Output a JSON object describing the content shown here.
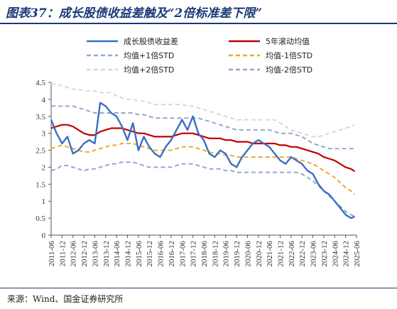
{
  "title": "图表37：成长股债收益差触及“2倍标准差下限”",
  "source": "来源：Wind、国金证券研究所",
  "chart_data": {
    "type": "line",
    "title": "",
    "xlabel": "",
    "ylabel": "",
    "ylim": [
      0,
      4.5
    ],
    "y_ticks": [
      "0",
      "0.5",
      "1",
      "1.5",
      "2",
      "2.5",
      "3",
      "3.5",
      "4",
      "4.5"
    ],
    "x_ticks": [
      "2011-06",
      "2011-12",
      "2012-06",
      "2012-12",
      "2013-06",
      "2013-12",
      "2014-06",
      "2014-12",
      "2015-06",
      "2015-12",
      "2016-06",
      "2016-12",
      "2017-06",
      "2017-12",
      "2018-06",
      "2018-12",
      "2019-06",
      "2019-12",
      "2020-06",
      "2020-12",
      "2021-06",
      "2021-12",
      "2022-06",
      "2022-12",
      "2023-06",
      "2023-12",
      "2024-06",
      "2024-12",
      "2025-06"
    ],
    "grid": false,
    "legend_position": "top",
    "x": [
      2011.5,
      2011.75,
      2012.0,
      2012.25,
      2012.5,
      2012.75,
      2013.0,
      2013.25,
      2013.5,
      2013.75,
      2014.0,
      2014.25,
      2014.5,
      2014.75,
      2015.0,
      2015.25,
      2015.5,
      2015.75,
      2016.0,
      2016.25,
      2016.5,
      2016.75,
      2017.0,
      2017.25,
      2017.5,
      2017.75,
      2018.0,
      2018.25,
      2018.5,
      2018.75,
      2019.0,
      2019.25,
      2019.5,
      2019.75,
      2020.0,
      2020.25,
      2020.5,
      2020.75,
      2021.0,
      2021.25,
      2021.5,
      2021.75,
      2022.0,
      2022.25,
      2022.5,
      2022.75,
      2023.0,
      2023.25,
      2023.5,
      2023.75,
      2024.0,
      2024.25,
      2024.5,
      2024.75,
      2025.0,
      2025.25,
      2025.42
    ],
    "series": [
      {
        "name": "成长股债收益差",
        "color": "#3a6fc4",
        "dash": "",
        "values": [
          3.4,
          3.0,
          2.7,
          2.9,
          2.4,
          2.5,
          2.7,
          2.8,
          2.7,
          3.9,
          3.8,
          3.6,
          3.5,
          3.2,
          2.8,
          3.3,
          2.5,
          2.9,
          2.6,
          2.4,
          2.3,
          2.6,
          2.8,
          3.1,
          3.4,
          3.1,
          3.5,
          3.0,
          2.8,
          2.4,
          2.3,
          2.5,
          2.4,
          2.1,
          2.0,
          2.3,
          2.5,
          2.7,
          2.8,
          2.7,
          2.6,
          2.4,
          2.2,
          2.1,
          2.3,
          2.2,
          2.1,
          1.9,
          1.8,
          1.5,
          1.3,
          1.2,
          1.0,
          0.8,
          0.6,
          0.5,
          0.55
        ]
      },
      {
        "name": "5年滚动均值",
        "color": "#c00000",
        "dash": "",
        "values": [
          3.15,
          3.2,
          3.25,
          3.25,
          3.2,
          3.1,
          3.0,
          2.95,
          2.95,
          3.05,
          3.1,
          3.15,
          3.15,
          3.15,
          3.1,
          3.05,
          3.0,
          3.0,
          2.95,
          2.9,
          2.9,
          2.9,
          2.9,
          2.95,
          3.0,
          3.0,
          3.0,
          2.95,
          2.9,
          2.85,
          2.85,
          2.85,
          2.8,
          2.8,
          2.75,
          2.75,
          2.75,
          2.7,
          2.7,
          2.7,
          2.7,
          2.7,
          2.65,
          2.65,
          2.6,
          2.6,
          2.55,
          2.5,
          2.45,
          2.4,
          2.3,
          2.25,
          2.2,
          2.1,
          2.0,
          1.95,
          1.88
        ]
      },
      {
        "name": "均值+1倍STD",
        "color": "#8fa9cf",
        "dash": "6,4",
        "values": [
          3.8,
          3.8,
          3.8,
          3.8,
          3.8,
          3.75,
          3.7,
          3.65,
          3.6,
          3.6,
          3.6,
          3.6,
          3.6,
          3.6,
          3.6,
          3.6,
          3.55,
          3.55,
          3.5,
          3.45,
          3.45,
          3.45,
          3.45,
          3.45,
          3.45,
          3.45,
          3.45,
          3.45,
          3.4,
          3.35,
          3.3,
          3.25,
          3.2,
          3.15,
          3.1,
          3.1,
          3.1,
          3.1,
          3.1,
          3.1,
          3.1,
          3.05,
          3.0,
          3.0,
          3.0,
          2.95,
          2.9,
          2.8,
          2.7,
          2.65,
          2.6,
          2.55,
          2.55,
          2.55,
          2.55,
          2.55,
          2.55
        ]
      },
      {
        "name": "均值-1倍STD",
        "color": "#f0a830",
        "dash": "6,4",
        "values": [
          2.55,
          2.6,
          2.65,
          2.6,
          2.55,
          2.5,
          2.45,
          2.45,
          2.5,
          2.55,
          2.6,
          2.65,
          2.65,
          2.7,
          2.7,
          2.7,
          2.65,
          2.6,
          2.55,
          2.5,
          2.5,
          2.5,
          2.5,
          2.55,
          2.6,
          2.6,
          2.6,
          2.55,
          2.5,
          2.45,
          2.4,
          2.4,
          2.35,
          2.35,
          2.3,
          2.3,
          2.3,
          2.3,
          2.3,
          2.3,
          2.3,
          2.3,
          2.3,
          2.3,
          2.3,
          2.25,
          2.2,
          2.15,
          2.1,
          2.0,
          1.9,
          1.8,
          1.7,
          1.55,
          1.4,
          1.3,
          1.2
        ]
      },
      {
        "name": "均值+2倍STD",
        "color": "#d8d8d8",
        "dash": "6,4",
        "values": [
          4.45,
          4.45,
          4.4,
          4.35,
          4.3,
          4.3,
          4.25,
          4.25,
          4.25,
          4.2,
          4.2,
          4.2,
          4.1,
          4.05,
          4.0,
          4.0,
          3.95,
          3.95,
          3.9,
          3.85,
          3.85,
          3.85,
          3.85,
          3.85,
          3.85,
          3.8,
          3.8,
          3.75,
          3.7,
          3.65,
          3.6,
          3.55,
          3.5,
          3.45,
          3.4,
          3.4,
          3.4,
          3.4,
          3.4,
          3.4,
          3.4,
          3.4,
          3.3,
          3.2,
          3.1,
          3.05,
          3.0,
          2.95,
          2.9,
          2.9,
          2.95,
          3.0,
          3.05,
          3.1,
          3.15,
          3.2,
          3.25
        ]
      },
      {
        "name": "均值-2倍STD",
        "color": "#8fa9cf",
        "dash": "6,4",
        "values": [
          1.9,
          1.95,
          2.05,
          2.05,
          2.0,
          1.95,
          1.9,
          1.95,
          1.95,
          2.0,
          2.05,
          2.1,
          2.1,
          2.15,
          2.15,
          2.15,
          2.1,
          2.05,
          2.0,
          2.0,
          2.0,
          2.0,
          2.0,
          2.05,
          2.1,
          2.1,
          2.1,
          2.05,
          2.0,
          1.95,
          1.95,
          1.95,
          1.9,
          1.9,
          1.85,
          1.85,
          1.85,
          1.85,
          1.85,
          1.85,
          1.85,
          1.85,
          1.85,
          1.85,
          1.85,
          1.85,
          1.8,
          1.7,
          1.6,
          1.45,
          1.3,
          1.15,
          1.0,
          0.85,
          0.7,
          0.6,
          0.55
        ]
      }
    ]
  }
}
